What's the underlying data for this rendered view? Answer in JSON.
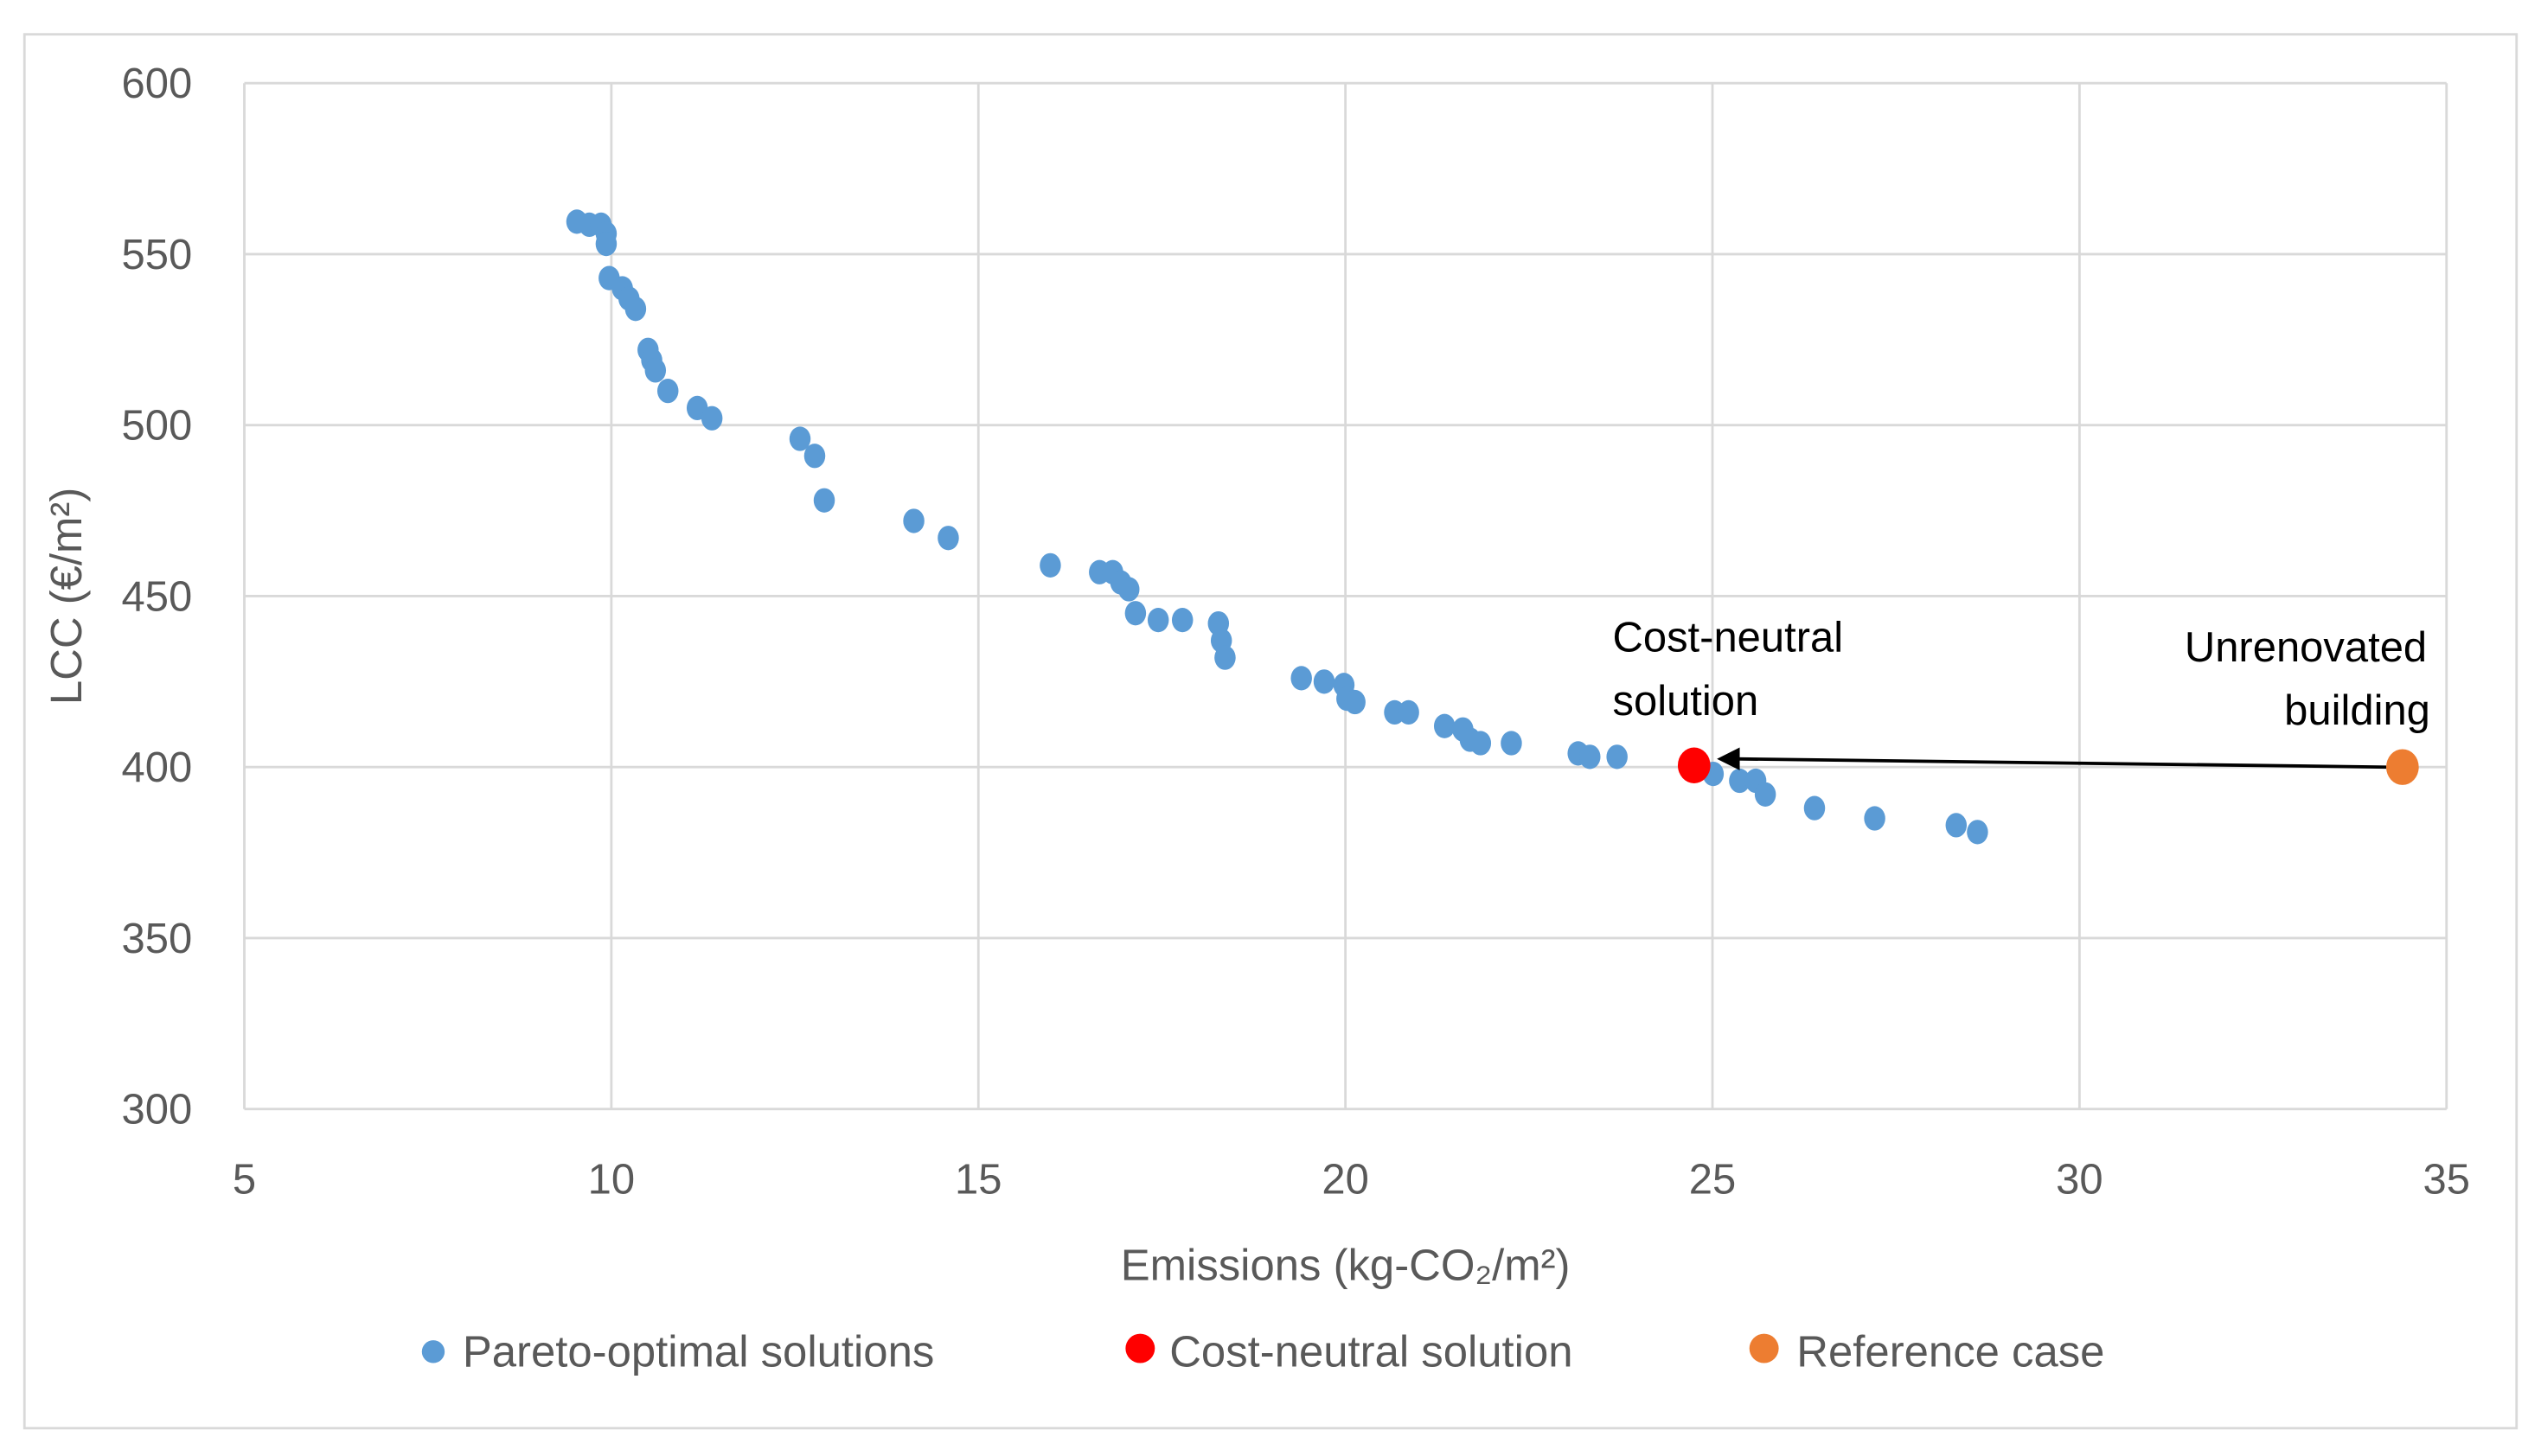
{
  "chart_data": {
    "type": "scatter",
    "title": "",
    "xlabel": "Emissions (kg-CO₂/m²)",
    "ylabel": "LCC (€/m²)",
    "xlim": [
      5,
      35
    ],
    "ylim": [
      300,
      600
    ],
    "xticks": [
      5,
      10,
      15,
      20,
      25,
      30,
      35
    ],
    "yticks": [
      300,
      350,
      400,
      450,
      500,
      550,
      600
    ],
    "grid": true,
    "legend_position": "bottom",
    "series": [
      {
        "name": "Pareto-optimal solutions",
        "color": "#5b9bd5",
        "points": [
          [
            9.53,
            559.5
          ],
          [
            9.7,
            558.6
          ],
          [
            9.86,
            558.6
          ],
          [
            9.93,
            556
          ],
          [
            9.93,
            553
          ],
          [
            9.97,
            543
          ],
          [
            10.15,
            540
          ],
          [
            10.24,
            537
          ],
          [
            10.33,
            534
          ],
          [
            10.5,
            522
          ],
          [
            10.55,
            519
          ],
          [
            10.6,
            516
          ],
          [
            10.77,
            510
          ],
          [
            11.17,
            505
          ],
          [
            11.37,
            502
          ],
          [
            12.57,
            496
          ],
          [
            12.77,
            491
          ],
          [
            12.9,
            478
          ],
          [
            14.12,
            472
          ],
          [
            14.59,
            467
          ],
          [
            15.98,
            459
          ],
          [
            16.65,
            457
          ],
          [
            16.83,
            457
          ],
          [
            16.94,
            454
          ],
          [
            17.05,
            452
          ],
          [
            17.14,
            445
          ],
          [
            17.45,
            443
          ],
          [
            17.78,
            443
          ],
          [
            18.27,
            442
          ],
          [
            18.31,
            437
          ],
          [
            18.36,
            432
          ],
          [
            19.4,
            426
          ],
          [
            19.71,
            425
          ],
          [
            19.98,
            424
          ],
          [
            20.02,
            420
          ],
          [
            20.13,
            419
          ],
          [
            20.67,
            416
          ],
          [
            20.86,
            416
          ],
          [
            21.35,
            412
          ],
          [
            21.6,
            411
          ],
          [
            21.7,
            408
          ],
          [
            21.84,
            407
          ],
          [
            22.26,
            407
          ],
          [
            23.17,
            404
          ],
          [
            23.33,
            403
          ],
          [
            23.7,
            403
          ],
          [
            25.01,
            398
          ],
          [
            25.37,
            396
          ],
          [
            25.59,
            396
          ],
          [
            25.72,
            392
          ],
          [
            26.39,
            388
          ],
          [
            27.21,
            385
          ],
          [
            28.32,
            383
          ],
          [
            28.61,
            381
          ]
        ]
      },
      {
        "name": "Cost-neutral solution",
        "color": "#ff0000",
        "points": [
          [
            24.75,
            400.5
          ]
        ]
      },
      {
        "name": "Reference case",
        "color": "#ed7d31",
        "points": [
          [
            34.4,
            400
          ]
        ]
      }
    ],
    "annotations": [
      {
        "lines": [
          "Cost-neutral",
          "solution"
        ]
      },
      {
        "lines": [
          "Unrenovated",
          "building"
        ]
      }
    ]
  }
}
